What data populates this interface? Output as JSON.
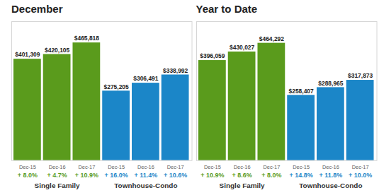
{
  "chart_data": [
    {
      "type": "bar",
      "title": "December",
      "categories": [
        "Dec-15",
        "Dec-16",
        "Dec-17"
      ],
      "series": [
        {
          "name": "Single Family",
          "color": "#5a9b1c",
          "values": [
            401309,
            420105,
            465818
          ],
          "value_labels": [
            "$401,309",
            "$420,105",
            "$465,818"
          ],
          "change_labels": [
            "+ 8.0%",
            "+ 4.7%",
            "+ 10.9%"
          ]
        },
        {
          "name": "Townhouse-Condo",
          "color": "#1b86c8",
          "values": [
            275205,
            306491,
            338992
          ],
          "value_labels": [
            "$275,205",
            "$306,491",
            "$338,992"
          ],
          "change_labels": [
            "+ 16.0%",
            "+ 11.4%",
            "+ 10.6%"
          ]
        }
      ],
      "ylim": [
        0,
        550000
      ],
      "yticks": [],
      "tick_labels": false,
      "grid": false,
      "data_labels": true
    },
    {
      "type": "bar",
      "title": "Year to Date",
      "categories": [
        "Dec-15",
        "Dec-16",
        "Dec-17"
      ],
      "series": [
        {
          "name": "Single Family",
          "color": "#5a9b1c",
          "values": [
            396059,
            430027,
            464292
          ],
          "value_labels": [
            "$396,059",
            "$430,027",
            "$464,292"
          ],
          "change_labels": [
            "+ 10.9%",
            "+ 8.6%",
            "+ 8.0%"
          ]
        },
        {
          "name": "Townhouse-Condo",
          "color": "#1b86c8",
          "values": [
            258407,
            288965,
            317873
          ],
          "value_labels": [
            "$258,407",
            "$288,965",
            "$317,873"
          ],
          "change_labels": [
            "+ 14.8%",
            "+ 11.8%",
            "+ 10.0%"
          ]
        }
      ],
      "ylim": [
        0,
        550000
      ],
      "yticks": [],
      "tick_labels": false,
      "grid": false,
      "data_labels": true
    }
  ]
}
